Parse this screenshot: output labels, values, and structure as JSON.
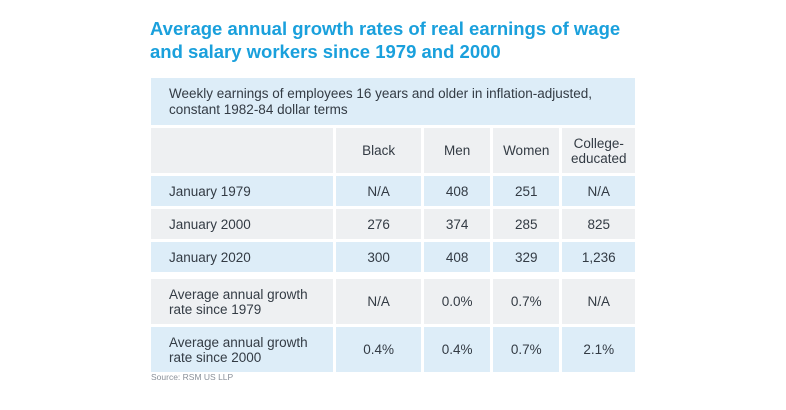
{
  "title": "Average annual growth rates of real earnings of wage and salary workers since 1979 and 2000",
  "subtitle": "Weekly earnings of employees 16 years and older in inflation-adjusted, constant 1982-84 dollar terms",
  "source": "Source: RSM US LLP",
  "chart_data": {
    "type": "table",
    "title": "Average annual growth rates of real earnings of wage and salary workers since 1979 and 2000",
    "subtitle": "Weekly earnings of employees 16 years and older in inflation-adjusted, constant 1982-84 dollar terms",
    "columns": [
      "",
      "Black",
      "Men",
      "Women",
      "College-educated"
    ],
    "rows": [
      [
        "January 1979",
        "N/A",
        "408",
        "251",
        "N/A"
      ],
      [
        "January 2000",
        "276",
        "374",
        "285",
        "825"
      ],
      [
        "January 2020",
        "300",
        "408",
        "329",
        "1,236"
      ],
      [
        "Average annual growth rate since 1979",
        "N/A",
        "0.0%",
        "0.7%",
        "N/A"
      ],
      [
        "Average annual growth rate since 2000",
        "0.4%",
        "0.4%",
        "0.7%",
        "2.1%"
      ]
    ]
  }
}
